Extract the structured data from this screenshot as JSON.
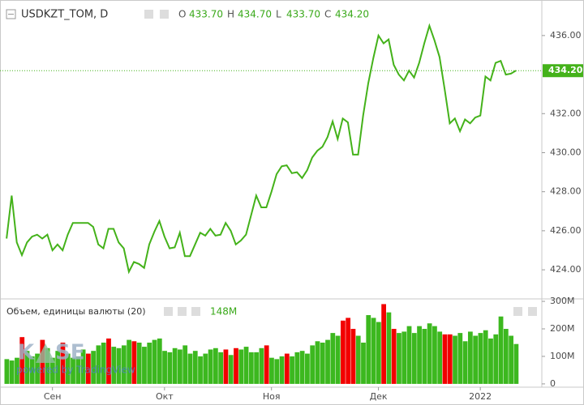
{
  "chart_data": [
    {
      "type": "line",
      "title": "USDKZT_TOM, D",
      "ohlc": [
        {
          "label": "O",
          "value": "433.70"
        },
        {
          "label": "H",
          "value": "434.70"
        },
        {
          "label": "L",
          "value": "433.70"
        },
        {
          "label": "C",
          "value": "434.20"
        }
      ],
      "categories": [
        null,
        null,
        null,
        null,
        null,
        null,
        null,
        null,
        null,
        "Сен",
        null,
        null,
        null,
        null,
        null,
        null,
        null,
        null,
        null,
        null,
        null,
        null,
        null,
        null,
        null,
        null,
        null,
        null,
        null,
        null,
        null,
        "Окт",
        null,
        null,
        null,
        null,
        null,
        null,
        null,
        null,
        null,
        null,
        null,
        null,
        null,
        null,
        null,
        null,
        null,
        null,
        null,
        null,
        "Ноя",
        null,
        null,
        null,
        null,
        null,
        null,
        null,
        null,
        null,
        null,
        null,
        null,
        null,
        null,
        null,
        null,
        null,
        null,
        null,
        null,
        "Дек",
        null,
        null,
        null,
        null,
        null,
        null,
        null,
        null,
        null,
        null,
        null,
        null,
        null,
        null,
        null,
        null,
        null,
        null,
        null,
        "2022",
        null,
        null,
        null,
        null,
        null,
        null,
        null
      ],
      "series": [
        {
          "name": "USDKZT_TOM",
          "color": "#44b21a",
          "values": [
            425.6,
            427.8,
            425.4,
            424.75,
            425.4,
            425.7,
            425.8,
            425.6,
            425.8,
            425.0,
            425.3,
            425.0,
            425.8,
            426.4,
            426.4,
            426.4,
            426.4,
            426.2,
            425.3,
            425.1,
            426.1,
            426.1,
            425.4,
            425.1,
            423.9,
            424.4,
            424.3,
            424.1,
            425.3,
            425.95,
            426.5,
            425.7,
            425.1,
            425.15,
            425.9,
            424.7,
            424.7,
            425.3,
            425.9,
            425.75,
            426.1,
            425.75,
            425.8,
            426.4,
            426.0,
            425.3,
            425.5,
            425.8,
            426.8,
            427.8,
            427.2,
            427.2,
            428.0,
            428.9,
            429.3,
            429.35,
            428.95,
            429.0,
            428.7,
            429.1,
            429.75,
            430.1,
            430.3,
            430.8,
            431.6,
            430.7,
            431.75,
            431.55,
            429.9,
            429.9,
            431.9,
            433.55,
            434.85,
            436.0,
            435.6,
            435.8,
            434.5,
            434.0,
            433.7,
            434.2,
            433.85,
            434.6,
            435.6,
            436.5,
            435.75,
            434.9,
            433.25,
            431.5,
            431.75,
            431.1,
            431.7,
            431.5,
            431.8,
            431.9,
            433.9,
            433.7,
            434.6,
            434.7,
            434.0,
            434.05,
            434.2
          ]
        }
      ],
      "last_value": {
        "value": 434.2,
        "label": "434.20"
      },
      "ylim": [
        422.51,
        437.82
      ],
      "yticks": [
        {
          "value": 424,
          "label": "424.00"
        },
        {
          "value": 426,
          "label": "426.00"
        },
        {
          "value": 428,
          "label": "428.00"
        },
        {
          "value": 430,
          "label": "430.00"
        },
        {
          "value": 432,
          "label": "432.00"
        },
        {
          "value": 436,
          "label": "436.00"
        }
      ]
    },
    {
      "type": "bar",
      "title": "Объем, единицы валюты (20)",
      "legend_value": "148M",
      "watermark": [
        "K",
        "SE",
        "powered by TradingView"
      ],
      "series": [
        {
          "name": "Объем",
          "values": [
            90,
            85,
            95,
            170,
            120,
            100,
            110,
            160,
            130,
            95,
            120,
            150,
            110,
            95,
            100,
            125,
            110,
            120,
            140,
            150,
            165,
            135,
            130,
            140,
            160,
            155,
            150,
            135,
            150,
            160,
            165,
            120,
            115,
            130,
            125,
            140,
            110,
            120,
            100,
            110,
            125,
            130,
            115,
            125,
            105,
            130,
            125,
            135,
            115,
            115,
            130,
            140,
            95,
            90,
            100,
            110,
            100,
            115,
            120,
            110,
            140,
            155,
            150,
            160,
            185,
            175,
            230,
            240,
            200,
            175,
            150,
            250,
            240,
            225,
            290,
            260,
            200,
            185,
            190,
            210,
            185,
            210,
            200,
            220,
            210,
            190,
            180,
            180,
            175,
            185,
            155,
            190,
            175,
            185,
            195,
            165,
            180,
            245,
            200,
            175,
            145
          ],
          "colors": [
            "#3cb81f",
            "#3cb81f",
            "#3cb81f",
            "#f20000",
            "#3cb81f",
            "#3cb81f",
            "#3cb81f",
            "#f20000",
            "#3cb81f",
            "#3cb81f",
            "#3cb81f",
            "#f20000",
            "#3cb81f",
            "#3cb81f",
            "#3cb81f",
            "#3cb81f",
            "#f20000",
            "#3cb81f",
            "#3cb81f",
            "#3cb81f",
            "#f20000",
            "#3cb81f",
            "#3cb81f",
            "#3cb81f",
            "#3cb81f",
            "#f20000",
            "#3cb81f",
            "#3cb81f",
            "#3cb81f",
            "#3cb81f",
            "#3cb81f",
            "#3cb81f",
            "#3cb81f",
            "#3cb81f",
            "#3cb81f",
            "#3cb81f",
            "#3cb81f",
            "#3cb81f",
            "#3cb81f",
            "#3cb81f",
            "#3cb81f",
            "#3cb81f",
            "#3cb81f",
            "#f20000",
            "#3cb81f",
            "#f20000",
            "#3cb81f",
            "#3cb81f",
            "#3cb81f",
            "#3cb81f",
            "#3cb81f",
            "#f20000",
            "#3cb81f",
            "#3cb81f",
            "#3cb81f",
            "#f20000",
            "#3cb81f",
            "#3cb81f",
            "#3cb81f",
            "#3cb81f",
            "#3cb81f",
            "#3cb81f",
            "#3cb81f",
            "#3cb81f",
            "#3cb81f",
            "#3cb81f",
            "#f20000",
            "#f20000",
            "#f20000",
            "#3cb81f",
            "#3cb81f",
            "#3cb81f",
            "#3cb81f",
            "#3cb81f",
            "#f20000",
            "#3cb81f",
            "#f20000",
            "#3cb81f",
            "#3cb81f",
            "#3cb81f",
            "#3cb81f",
            "#3cb81f",
            "#3cb81f",
            "#3cb81f",
            "#3cb81f",
            "#3cb81f",
            "#f20000",
            "#f20000",
            "#3cb81f",
            "#3cb81f",
            "#3cb81f",
            "#3cb81f",
            "#3cb81f",
            "#3cb81f",
            "#3cb81f",
            "#3cb81f",
            "#3cb81f",
            "#3cb81f",
            "#3cb81f",
            "#3cb81f",
            "#3cb81f"
          ]
        }
      ],
      "ylim": [
        -12,
        309
      ],
      "yticks": [
        {
          "value": 0,
          "label": "0"
        },
        {
          "value": 100,
          "label": "100M"
        },
        {
          "value": 200,
          "label": "200M"
        },
        {
          "value": 300,
          "label": "300M"
        }
      ]
    }
  ]
}
